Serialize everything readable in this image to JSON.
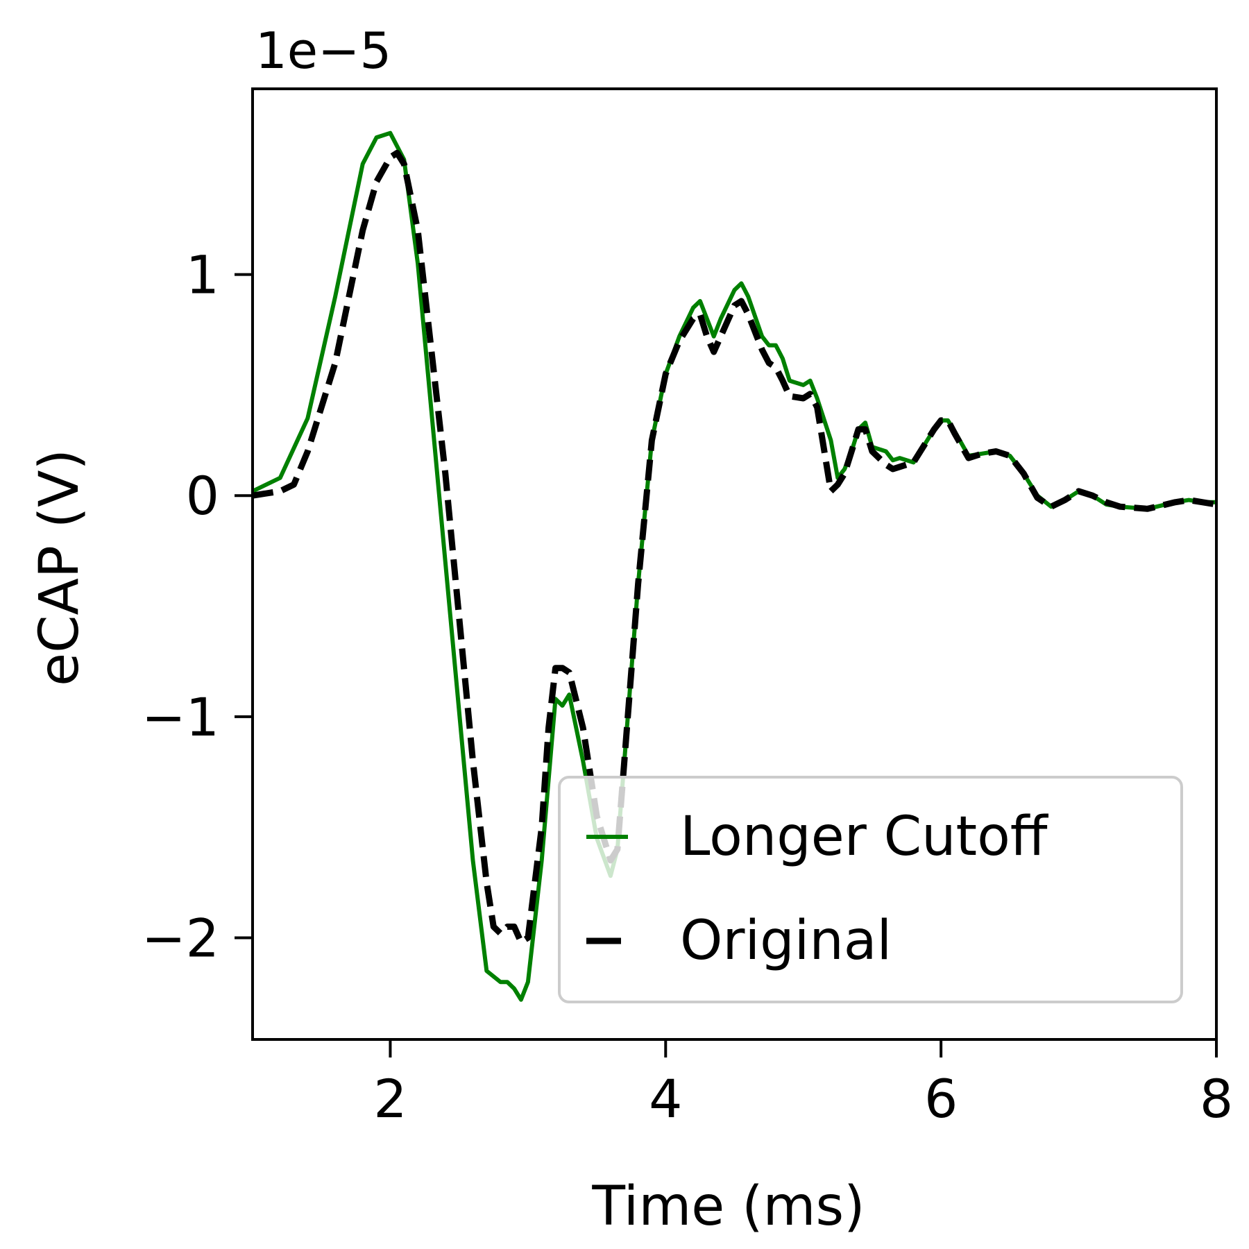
{
  "chart_data": {
    "type": "line",
    "xlabel": "Time (ms)",
    "ylabel": "eCAP (V)",
    "y_offset_label": "1e−5",
    "xlim": [
      1,
      8
    ],
    "ylim": [
      -2.46,
      1.84
    ],
    "x_ticks": [
      {
        "value": 2,
        "label": "2"
      },
      {
        "value": 4,
        "label": "4"
      },
      {
        "value": 6,
        "label": "6"
      },
      {
        "value": 8,
        "label": "8"
      }
    ],
    "y_ticks": [
      {
        "value": 1,
        "label": "1"
      },
      {
        "value": 0,
        "label": "0"
      },
      {
        "value": -1,
        "label": "−1"
      },
      {
        "value": -2,
        "label": "−2"
      }
    ],
    "grid": false,
    "legend_position": "lower-right",
    "series": [
      {
        "name": "Longer Cutoff",
        "color": "#008000",
        "style": "solid",
        "x": [
          1.0,
          1.2,
          1.4,
          1.6,
          1.8,
          1.9,
          2.0,
          2.1,
          2.2,
          2.4,
          2.6,
          2.7,
          2.8,
          2.85,
          2.9,
          2.95,
          3.0,
          3.1,
          3.2,
          3.25,
          3.3,
          3.4,
          3.5,
          3.6,
          3.65,
          3.7,
          3.8,
          3.9,
          4.0,
          4.1,
          4.2,
          4.25,
          4.3,
          4.35,
          4.4,
          4.5,
          4.55,
          4.6,
          4.7,
          4.75,
          4.8,
          4.85,
          4.9,
          5.0,
          5.05,
          5.1,
          5.2,
          5.25,
          5.3,
          5.35,
          5.4,
          5.45,
          5.5,
          5.6,
          5.65,
          5.7,
          5.8,
          5.9,
          5.95,
          6.0,
          6.05,
          6.1,
          6.2,
          6.3,
          6.4,
          6.5,
          6.6,
          6.7,
          6.8,
          6.9,
          7.0,
          7.1,
          7.2,
          7.3,
          7.5,
          7.7,
          7.8,
          7.9,
          8.0
        ],
        "y": [
          0.02,
          0.08,
          0.35,
          0.9,
          1.5,
          1.62,
          1.64,
          1.52,
          1.05,
          -0.3,
          -1.65,
          -2.15,
          -2.2,
          -2.2,
          -2.23,
          -2.28,
          -2.2,
          -1.65,
          -0.92,
          -0.95,
          -0.9,
          -1.2,
          -1.55,
          -1.72,
          -1.6,
          -1.2,
          -0.4,
          0.25,
          0.55,
          0.72,
          0.85,
          0.88,
          0.8,
          0.72,
          0.8,
          0.93,
          0.96,
          0.9,
          0.72,
          0.68,
          0.68,
          0.62,
          0.52,
          0.5,
          0.52,
          0.44,
          0.25,
          0.08,
          0.12,
          0.2,
          0.3,
          0.33,
          0.22,
          0.2,
          0.16,
          0.17,
          0.15,
          0.25,
          0.3,
          0.34,
          0.34,
          0.29,
          0.18,
          0.19,
          0.2,
          0.18,
          0.1,
          0.0,
          -0.05,
          -0.02,
          0.02,
          0.0,
          -0.04,
          -0.05,
          -0.06,
          -0.03,
          -0.02,
          -0.03,
          -0.03
        ]
      },
      {
        "name": "Original",
        "color": "#000000",
        "style": "dashed",
        "x": [
          1.0,
          1.2,
          1.3,
          1.4,
          1.6,
          1.8,
          1.9,
          2.0,
          2.05,
          2.1,
          2.2,
          2.4,
          2.6,
          2.7,
          2.75,
          2.8,
          2.85,
          2.9,
          2.95,
          3.0,
          3.1,
          3.15,
          3.2,
          3.25,
          3.3,
          3.4,
          3.5,
          3.6,
          3.65,
          3.7,
          3.8,
          3.9,
          4.0,
          4.1,
          4.2,
          4.25,
          4.3,
          4.35,
          4.4,
          4.5,
          4.55,
          4.6,
          4.7,
          4.75,
          4.8,
          4.85,
          4.9,
          5.0,
          5.05,
          5.1,
          5.2,
          5.25,
          5.3,
          5.35,
          5.4,
          5.45,
          5.5,
          5.6,
          5.65,
          5.7,
          5.8,
          5.9,
          5.95,
          6.0,
          6.05,
          6.1,
          6.2,
          6.3,
          6.4,
          6.5,
          6.6,
          6.7,
          6.8,
          6.9,
          7.0,
          7.1,
          7.2,
          7.3,
          7.5,
          7.7,
          7.8,
          7.9,
          8.0
        ],
        "y": [
          0.0,
          0.02,
          0.05,
          0.2,
          0.6,
          1.2,
          1.42,
          1.53,
          1.55,
          1.5,
          1.2,
          0.1,
          -1.2,
          -1.75,
          -1.95,
          -1.98,
          -1.95,
          -1.95,
          -2.02,
          -2.0,
          -1.5,
          -1.05,
          -0.78,
          -0.78,
          -0.8,
          -1.05,
          -1.45,
          -1.65,
          -1.6,
          -1.2,
          -0.4,
          0.25,
          0.55,
          0.7,
          0.8,
          0.82,
          0.72,
          0.65,
          0.72,
          0.86,
          0.88,
          0.82,
          0.66,
          0.6,
          0.58,
          0.52,
          0.45,
          0.44,
          0.46,
          0.4,
          0.02,
          0.05,
          0.1,
          0.2,
          0.3,
          0.3,
          0.2,
          0.14,
          0.12,
          0.13,
          0.15,
          0.25,
          0.3,
          0.34,
          0.34,
          0.28,
          0.17,
          0.19,
          0.2,
          0.18,
          0.1,
          -0.01,
          -0.05,
          -0.02,
          0.02,
          0.0,
          -0.03,
          -0.05,
          -0.06,
          -0.03,
          -0.02,
          -0.03,
          -0.04
        ]
      }
    ]
  }
}
